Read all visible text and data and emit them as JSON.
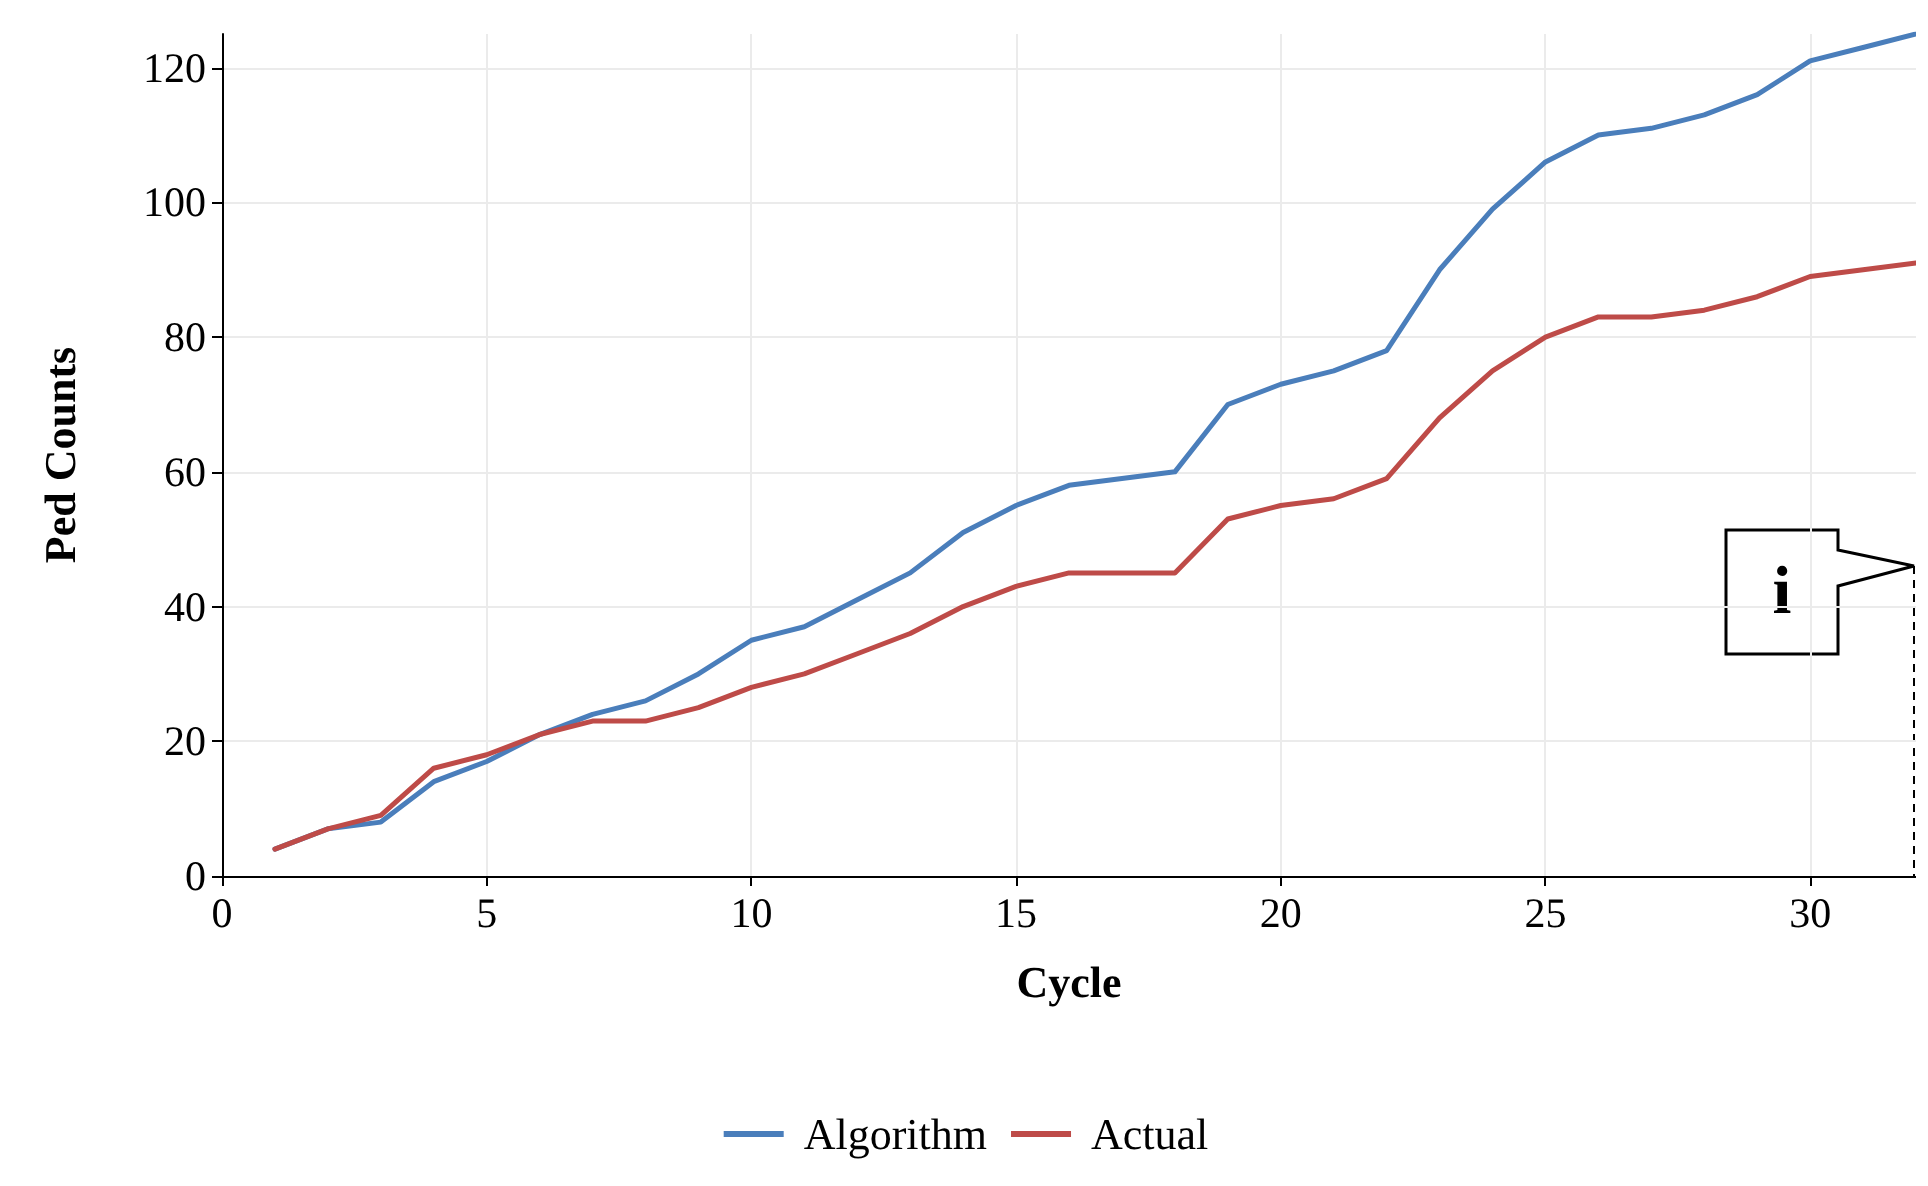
{
  "chart_data": {
    "type": "line",
    "xlabel": "Cycle",
    "ylabel": "Ped Counts",
    "x": [
      1,
      2,
      3,
      4,
      5,
      6,
      7,
      8,
      9,
      10,
      11,
      12,
      13,
      14,
      15,
      16,
      17,
      18,
      19,
      20,
      21,
      22,
      23,
      24,
      25,
      26,
      27,
      28,
      29,
      30,
      31,
      32
    ],
    "series": [
      {
        "name": "Algorithm",
        "color": "#4a7ebb",
        "values": [
          4,
          7,
          8,
          14,
          17,
          21,
          24,
          26,
          30,
          35,
          37,
          41,
          45,
          51,
          55,
          58,
          59,
          60,
          70,
          73,
          75,
          78,
          90,
          99,
          106,
          110,
          111,
          113,
          116,
          121,
          123,
          125
        ]
      },
      {
        "name": "Actual",
        "color": "#be4b48",
        "values": [
          4,
          7,
          9,
          16,
          18,
          21,
          23,
          23,
          25,
          28,
          30,
          33,
          36,
          40,
          43,
          45,
          45,
          45,
          53,
          55,
          56,
          59,
          68,
          75,
          80,
          83,
          83,
          84,
          86,
          89,
          90,
          91
        ]
      }
    ],
    "xlim": [
      0,
      32
    ],
    "xticks": [
      0,
      5,
      10,
      15,
      20,
      25,
      30
    ],
    "ylim": [
      0,
      125
    ],
    "yticks": [
      0,
      20,
      40,
      60,
      80,
      100,
      120
    ],
    "grid": true,
    "legend": "bottom",
    "marker": "none",
    "line_style": "solid",
    "annotations": [
      "i"
    ]
  }
}
